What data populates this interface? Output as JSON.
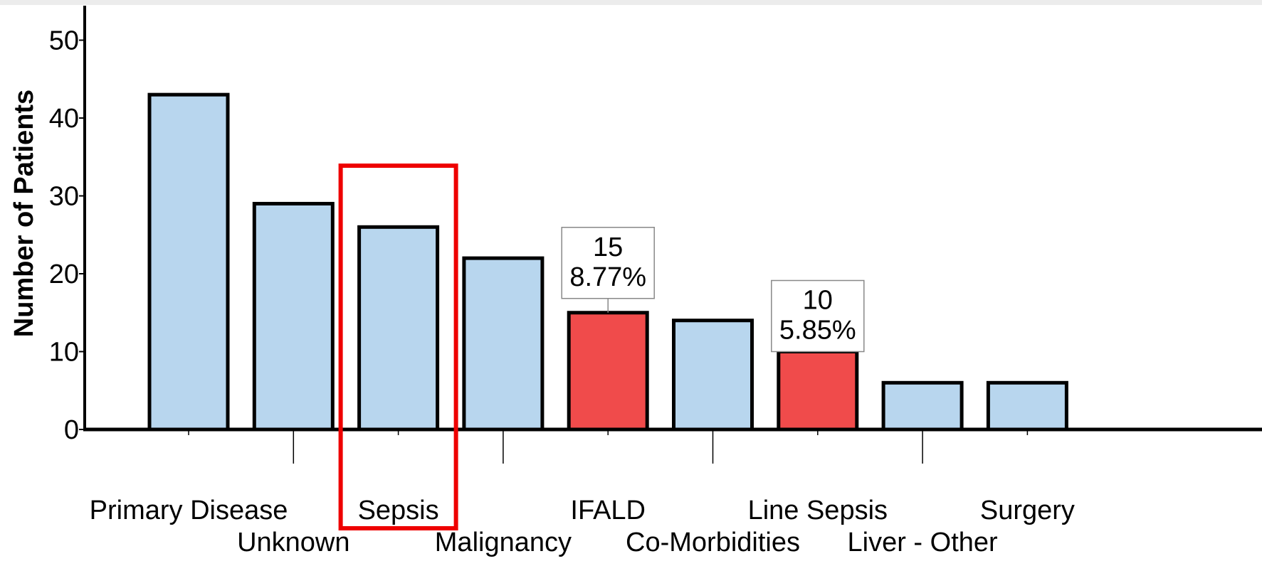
{
  "chart_data": {
    "type": "bar",
    "ylabel": "Number of Patients",
    "xlabel": "",
    "title": "",
    "ylim": [
      0,
      53
    ],
    "yticks": [
      0,
      10,
      20,
      30,
      40,
      50
    ],
    "categories": [
      "Primary Disease",
      "Unknown",
      "Sepsis",
      "Malignancy",
      "IFALD",
      "Co-Morbidities",
      "Line Sepsis",
      "Liver - Other",
      "Surgery"
    ],
    "values": [
      43,
      29,
      26,
      22,
      15,
      14,
      10,
      6,
      6
    ],
    "highlighted": [
      "IFALD",
      "Line Sepsis"
    ],
    "annotations": [
      {
        "category": "IFALD",
        "lines": [
          "15",
          "8.77%"
        ]
      },
      {
        "category": "Line Sepsis",
        "lines": [
          "10",
          "5.85%"
        ]
      }
    ],
    "emphasis_box": "Sepsis",
    "colors": {
      "bar": "#b8d6ee",
      "highlight": "#f04b4b",
      "emphasis_box": "#ee0000",
      "outline": "#000000"
    },
    "grid": false
  }
}
